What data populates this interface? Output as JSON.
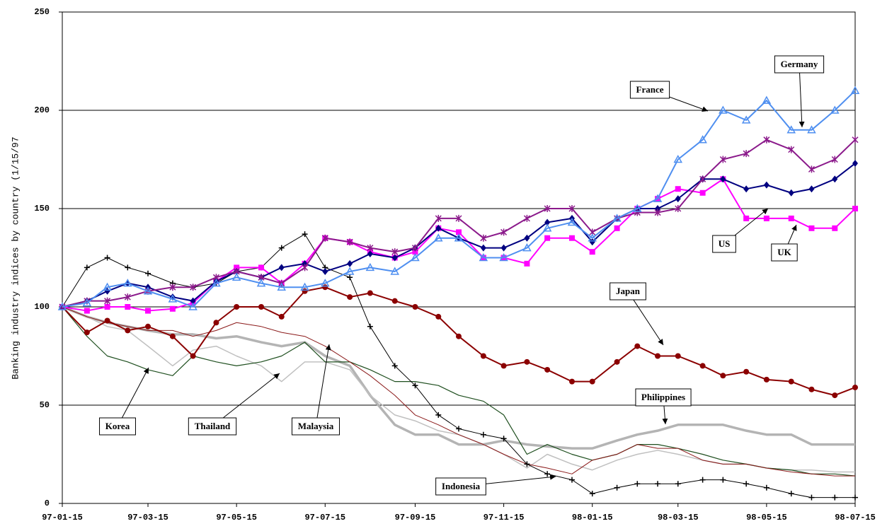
{
  "chart_data": {
    "type": "line",
    "y_label": "Banking industry indices by country (1/15/97",
    "x": [
      "97-01-15",
      "97-02-01",
      "97-02-15",
      "97-03-01",
      "97-03-15",
      "97-04-01",
      "97-04-15",
      "97-05-01",
      "97-05-15",
      "97-06-01",
      "97-06-15",
      "97-07-01",
      "97-07-15",
      "97-08-01",
      "97-08-15",
      "97-09-01",
      "97-09-15",
      "97-10-01",
      "97-10-15",
      "97-11-01",
      "97-11-15",
      "97-12-01",
      "97-12-15",
      "98-01-01",
      "98-01-15",
      "98-02-01",
      "98-02-15",
      "98-03-01",
      "98-03-15",
      "98-04-01",
      "98-04-15",
      "98-05-01",
      "98-05-15",
      "98-06-01",
      "98-06-15",
      "98-07-01",
      "98-07-15"
    ],
    "xlim": [
      "97-01-15",
      "98-07-15"
    ],
    "xticks": [
      "97-01-15",
      "97-03-15",
      "97-05-15",
      "97-07-15",
      "97-09-15",
      "97-11-15",
      "98-01-15",
      "98-03-15",
      "98-05-15",
      "98-07-15"
    ],
    "ylim": [
      0,
      250
    ],
    "yticks": [
      0,
      50,
      100,
      150,
      200,
      250
    ],
    "grid": true,
    "series": [
      {
        "name": "Philippines",
        "color": "#b4b4b4",
        "line_width": 3.5,
        "marker": "none",
        "values": [
          100,
          95,
          92,
          90,
          88,
          86,
          86,
          84,
          85,
          82,
          80,
          82,
          75,
          70,
          55,
          40,
          35,
          35,
          30,
          30,
          32,
          30,
          29,
          28,
          28,
          32,
          35,
          37,
          40,
          40,
          40,
          37,
          35,
          35,
          30,
          30,
          30
        ]
      },
      {
        "name": "Thailand",
        "color": "#c0c0c0",
        "line_width": 1.5,
        "marker": "none",
        "values": [
          100,
          95,
          90,
          88,
          80,
          70,
          78,
          80,
          75,
          70,
          62,
          72,
          72,
          68,
          55,
          45,
          42,
          37,
          35,
          30,
          25,
          18,
          25,
          20,
          17,
          22,
          25,
          27,
          25,
          22,
          20,
          20,
          18,
          17,
          17,
          16,
          16
        ]
      },
      {
        "name": "Korea",
        "color": "#1f4f1f",
        "line_width": 1.2,
        "marker": "none",
        "values": [
          100,
          85,
          75,
          72,
          68,
          65,
          75,
          72,
          70,
          72,
          75,
          82,
          72,
          72,
          68,
          62,
          62,
          60,
          55,
          52,
          45,
          25,
          30,
          25,
          22,
          25,
          30,
          30,
          28,
          25,
          22,
          20,
          18,
          17,
          15,
          15,
          14
        ]
      },
      {
        "name": "Malaysia",
        "color": "#8b1a1a",
        "line_width": 1,
        "marker": "none",
        "values": [
          100,
          95,
          92,
          90,
          88,
          88,
          85,
          88,
          92,
          90,
          87,
          85,
          80,
          72,
          65,
          55,
          45,
          40,
          35,
          30,
          25,
          20,
          18,
          15,
          22,
          25,
          30,
          28,
          28,
          22,
          20,
          20,
          18,
          16,
          15,
          14,
          14
        ]
      },
      {
        "name": "Indonesia",
        "color": "#000000",
        "line_width": 1,
        "marker": "plus",
        "values": [
          100,
          120,
          125,
          120,
          117,
          112,
          110,
          112,
          118,
          120,
          130,
          137,
          120,
          115,
          90,
          70,
          60,
          45,
          38,
          35,
          33,
          20,
          15,
          12,
          5,
          8,
          10,
          10,
          10,
          12,
          12,
          10,
          8,
          5,
          3,
          3,
          3
        ]
      },
      {
        "name": "Japan",
        "color": "#8b0000",
        "line_width": 2,
        "marker": "circle",
        "values": [
          100,
          87,
          93,
          88,
          90,
          85,
          75,
          92,
          100,
          100,
          95,
          108,
          110,
          105,
          107,
          103,
          100,
          95,
          85,
          75,
          70,
          72,
          68,
          62,
          62,
          72,
          80,
          75,
          75,
          70,
          65,
          67,
          63,
          62,
          58,
          55,
          59
        ]
      },
      {
        "name": "UK",
        "color": "#ff00ff",
        "line_width": 2,
        "marker": "square",
        "values": [
          100,
          98,
          100,
          100,
          98,
          99,
          102,
          113,
          120,
          120,
          112,
          122,
          135,
          133,
          128,
          125,
          128,
          140,
          138,
          125,
          125,
          122,
          135,
          135,
          128,
          140,
          150,
          155,
          160,
          158,
          165,
          145,
          145,
          145,
          140,
          140,
          150
        ]
      },
      {
        "name": "US",
        "color": "#000080",
        "line_width": 2,
        "marker": "diamond",
        "values": [
          100,
          103,
          108,
          112,
          110,
          105,
          103,
          113,
          118,
          115,
          120,
          122,
          118,
          122,
          127,
          125,
          130,
          140,
          135,
          130,
          130,
          135,
          143,
          145,
          133,
          145,
          150,
          150,
          155,
          165,
          165,
          160,
          162,
          158,
          160,
          165,
          173
        ]
      },
      {
        "name": "Germany",
        "color": "#8b1a8b",
        "line_width": 2,
        "marker": "star",
        "values": [
          100,
          103,
          103,
          105,
          108,
          110,
          110,
          115,
          118,
          115,
          112,
          120,
          135,
          133,
          130,
          128,
          130,
          145,
          145,
          135,
          138,
          145,
          150,
          150,
          138,
          145,
          148,
          148,
          150,
          165,
          175,
          178,
          185,
          180,
          170,
          175,
          185
        ]
      },
      {
        "name": "France",
        "color": "#4f8ff0",
        "line_width": 2,
        "marker": "triangle",
        "values": [
          100,
          102,
          110,
          112,
          108,
          104,
          100,
          112,
          115,
          112,
          110,
          110,
          112,
          118,
          120,
          118,
          125,
          135,
          135,
          125,
          125,
          130,
          140,
          143,
          135,
          145,
          150,
          155,
          175,
          185,
          200,
          195,
          205,
          190,
          190,
          200,
          210
        ]
      }
    ]
  }
}
